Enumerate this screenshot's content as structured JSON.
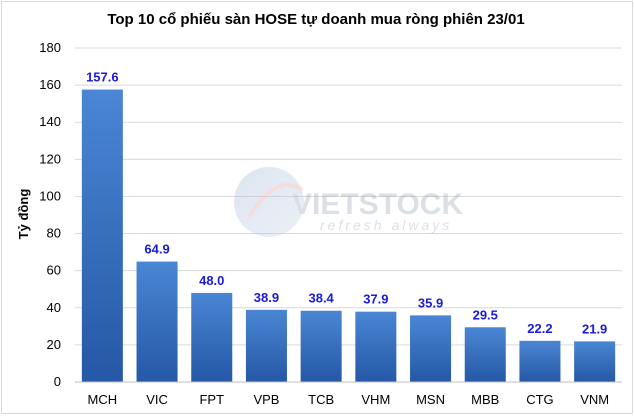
{
  "chart_data": {
    "type": "bar",
    "title": "Top 10 cổ phiếu sàn HOSE tự doanh mua ròng phiên 23/01",
    "xlabel": "",
    "ylabel": "Tỷ đồng",
    "categories": [
      "MCH",
      "VIC",
      "FPT",
      "VPB",
      "TCB",
      "VHM",
      "MSN",
      "MBB",
      "CTG",
      "VNM"
    ],
    "values": [
      157.6,
      64.9,
      48.0,
      38.9,
      38.4,
      37.9,
      35.9,
      29.5,
      22.2,
      21.9
    ],
    "value_labels": [
      "157.6",
      "64.9",
      "48.0",
      "38.9",
      "38.4",
      "37.9",
      "35.9",
      "29.5",
      "22.2",
      "21.9"
    ],
    "ylim": [
      0,
      180
    ],
    "yticks": [
      0,
      20,
      40,
      60,
      80,
      100,
      120,
      140,
      160,
      180
    ],
    "grid": true,
    "bar_color_top": "#4a86d4",
    "bar_color_bottom": "#2558a6",
    "label_color": "#1a1adb"
  },
  "watermark": {
    "brand": "VIETSTOCK",
    "tagline": "refresh always"
  }
}
